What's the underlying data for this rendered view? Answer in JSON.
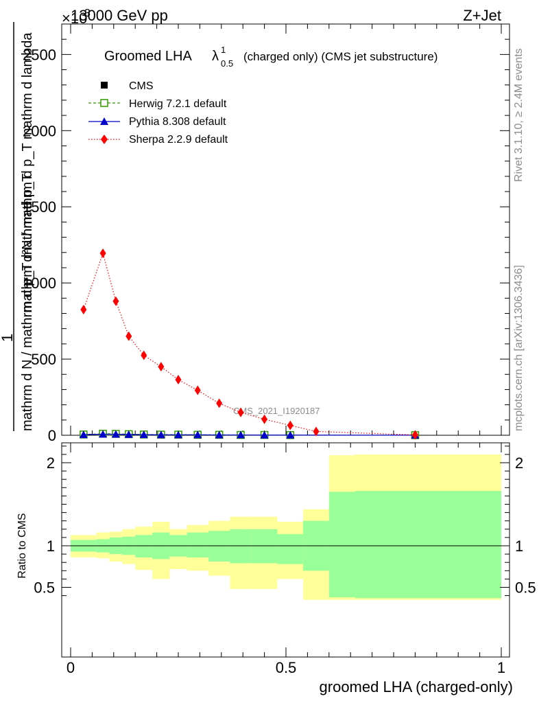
{
  "header": {
    "left": "13000 GeV pp",
    "right": "Z+Jet",
    "exponent_prefix": "×10",
    "exponent_power": "3"
  },
  "side_text": {
    "rivet": "Rivet 3.1.10, ≥ 2.4M events",
    "mcplots": "mcplots.cern.ch [arXiv:1306.3436]"
  },
  "watermark": "CMS_2021_I1920187",
  "chart_data": [
    {
      "type": "line",
      "title": "Groomed LHA λ¹₀.₅ (charged only) (CMS jet substructure)",
      "title_parts": {
        "main": "Groomed LHA",
        "lambda": "λ",
        "sup": "1",
        "sub": "0.5",
        "rest": "(charged only) (CMS jet substructure)"
      },
      "ylabel_top": "1",
      "ylabel_den": "mathrm d N / mathrm d p_T mathrm d p_T",
      "ylabel_num": "mathrm d²N / mathrm d p_T mathrm d lambda",
      "y_multiplier": 1000,
      "xlim": [
        0,
        1
      ],
      "ylim": [
        0,
        2700
      ],
      "y_ticks": [
        0,
        500,
        1000,
        1500,
        2000,
        2500
      ],
      "y_tick_labels": [
        "0",
        "500",
        "1000",
        "1500",
        "2000",
        "2500"
      ],
      "legend_position": "top-left",
      "grid": false,
      "series": [
        {
          "name": "CMS",
          "style": "markers",
          "marker": "square",
          "color": "#000000",
          "x": [
            0.03,
            0.075,
            0.105,
            0.135,
            0.17,
            0.21,
            0.25,
            0.295,
            0.345,
            0.395,
            0.45,
            0.51,
            0.8
          ],
          "y": [
            5,
            8,
            8,
            6,
            5,
            4,
            4,
            3,
            3,
            2,
            2,
            1,
            0.5
          ]
        },
        {
          "name": "Herwig 7.2.1 default",
          "style": "dashed",
          "marker": "open-square",
          "color": "#339900",
          "x": [
            0.03,
            0.075,
            0.105,
            0.135,
            0.17,
            0.21,
            0.25,
            0.295,
            0.345,
            0.395,
            0.45,
            0.51,
            0.8
          ],
          "y": [
            5,
            10,
            9,
            7,
            5,
            4,
            4,
            3,
            3,
            2,
            2,
            1,
            0.5
          ]
        },
        {
          "name": "Pythia 8.308 default",
          "style": "solid",
          "marker": "triangle",
          "color": "#0000cc",
          "x": [
            0.03,
            0.075,
            0.105,
            0.135,
            0.17,
            0.21,
            0.25,
            0.295,
            0.345,
            0.395,
            0.45,
            0.51,
            0.8
          ],
          "y": [
            4,
            7,
            7,
            5,
            4,
            3,
            3,
            3,
            2,
            2,
            1,
            1,
            0.4
          ]
        },
        {
          "name": "Sherpa 2.2.9 default",
          "style": "dotted",
          "marker": "diamond",
          "color": "#ff0000",
          "x": [
            0.03,
            0.075,
            0.105,
            0.135,
            0.17,
            0.21,
            0.25,
            0.295,
            0.345,
            0.395,
            0.45,
            0.51,
            0.57,
            0.8
          ],
          "y": [
            825,
            1195,
            880,
            650,
            525,
            450,
            365,
            295,
            210,
            150,
            105,
            65,
            25,
            2
          ]
        }
      ]
    },
    {
      "type": "area",
      "ylabel": "Ratio to CMS",
      "xlabel": "groomed LHA (charged-only)",
      "xlim": [
        0,
        1
      ],
      "ylim": [
        0.35,
        2.25
      ],
      "x_ticks": [
        0,
        0.5,
        1
      ],
      "x_tick_labels": [
        "0",
        "0.5",
        "1"
      ],
      "y_ticks": [
        0.5,
        1,
        2
      ],
      "y_tick_labels": [
        "0.5",
        "1",
        "2"
      ],
      "reference_line": 1,
      "band_colors": {
        "stat": "#99ff99",
        "total": "#ffff99"
      },
      "bins": [
        {
          "lo": 0.0,
          "hi": 0.06,
          "stat": [
            0.93,
            1.07
          ],
          "total": [
            0.86,
            1.13
          ]
        },
        {
          "lo": 0.06,
          "hi": 0.09,
          "stat": [
            0.92,
            1.08
          ],
          "total": [
            0.85,
            1.16
          ]
        },
        {
          "lo": 0.09,
          "hi": 0.12,
          "stat": [
            0.9,
            1.1
          ],
          "total": [
            0.81,
            1.17
          ]
        },
        {
          "lo": 0.12,
          "hi": 0.15,
          "stat": [
            0.89,
            1.11
          ],
          "total": [
            0.78,
            1.2
          ]
        },
        {
          "lo": 0.15,
          "hi": 0.19,
          "stat": [
            0.86,
            1.13
          ],
          "total": [
            0.71,
            1.23
          ]
        },
        {
          "lo": 0.19,
          "hi": 0.23,
          "stat": [
            0.84,
            1.16
          ],
          "total": [
            0.6,
            1.29
          ]
        },
        {
          "lo": 0.23,
          "hi": 0.27,
          "stat": [
            0.87,
            1.13
          ],
          "total": [
            0.72,
            1.2
          ]
        },
        {
          "lo": 0.27,
          "hi": 0.32,
          "stat": [
            0.86,
            1.16
          ],
          "total": [
            0.7,
            1.25
          ]
        },
        {
          "lo": 0.32,
          "hi": 0.37,
          "stat": [
            0.81,
            1.18
          ],
          "total": [
            0.64,
            1.3
          ]
        },
        {
          "lo": 0.37,
          "hi": 0.42,
          "stat": [
            0.79,
            1.2
          ],
          "total": [
            0.48,
            1.35
          ]
        },
        {
          "lo": 0.42,
          "hi": 0.48,
          "stat": [
            0.79,
            1.2
          ],
          "total": [
            0.48,
            1.35
          ]
        },
        {
          "lo": 0.48,
          "hi": 0.54,
          "stat": [
            0.78,
            1.14
          ],
          "total": [
            0.6,
            1.29
          ]
        },
        {
          "lo": 0.54,
          "hi": 0.6,
          "stat": [
            0.7,
            1.3
          ],
          "total": [
            0.35,
            1.44
          ]
        },
        {
          "lo": 0.6,
          "hi": 0.66,
          "stat": [
            0.38,
            1.65
          ],
          "total": [
            0.35,
            2.09
          ]
        },
        {
          "lo": 0.66,
          "hi": 1.0,
          "stat": [
            0.37,
            1.66
          ],
          "total": [
            0.35,
            2.1
          ]
        }
      ]
    }
  ]
}
